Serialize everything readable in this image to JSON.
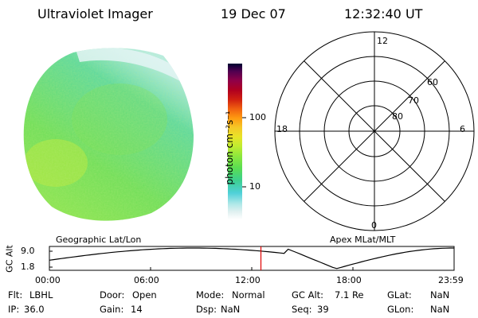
{
  "header": {
    "instrument": "Ultraviolet Imager",
    "date": "19 Dec 07",
    "time": "12:32:40 UT"
  },
  "colorbar": {
    "unit_label": "photon cm⁻²s⁻¹",
    "ticks": [
      "100",
      "10"
    ],
    "colors": [
      "#ffffff",
      "#e0f0f0",
      "#aee8e8",
      "#4fd0d8",
      "#3cd090",
      "#5ade52",
      "#90e83c",
      "#c0ec30",
      "#e8e428",
      "#f5c828",
      "#ff9a10",
      "#f06010",
      "#d02010",
      "#b00020",
      "#900048",
      "#500050",
      "#000030"
    ]
  },
  "polar_plot": {
    "clock_labels": [
      "12",
      "18",
      "6",
      "0"
    ],
    "lat_labels": [
      "60",
      "70",
      "80"
    ]
  },
  "orbit_plot": {
    "left_label": "Geographic Lat/Lon",
    "right_label": "Apex MLat/MLT",
    "y_title": "GC Alt",
    "y_ticks": [
      "9.0",
      "1.8"
    ],
    "x_ticks": [
      "00:00",
      "06:00",
      "12:00",
      "18:00",
      "23:59"
    ],
    "current_time_hours": 12.544,
    "colors": {
      "trace": "#000000",
      "marker": "#e00000"
    }
  },
  "info": {
    "row1": [
      {
        "label": "Flt:",
        "value": "LBHL"
      },
      {
        "label": "Door:",
        "value": "Open"
      },
      {
        "label": "Mode:",
        "value": "Normal"
      },
      {
        "label": "GC Alt:",
        "value": "7.1 Re"
      },
      {
        "label": "GLat:",
        "value": "NaN"
      }
    ],
    "row2": [
      {
        "label": "IP:",
        "value": "36.0"
      },
      {
        "label": "Gain:",
        "value": "14"
      },
      {
        "label": "Dsp:",
        "value": "NaN"
      },
      {
        "label": "Seq:",
        "value": "39"
      },
      {
        "label": "GLon:",
        "value": "NaN"
      }
    ]
  }
}
